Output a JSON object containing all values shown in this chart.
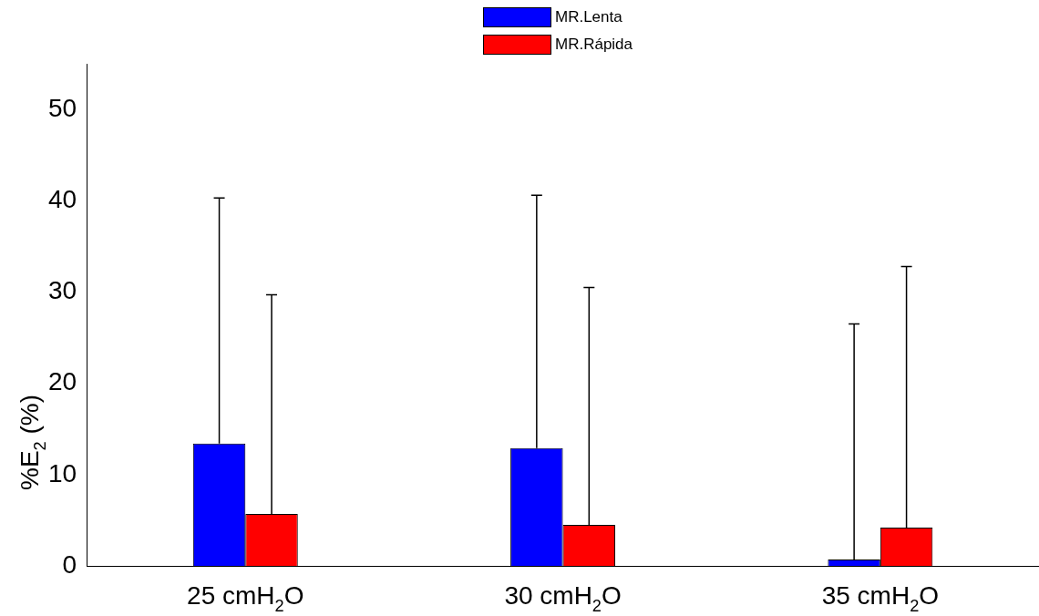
{
  "chart_data": {
    "type": "bar",
    "ylabel": "%E$_{2}$ (%)",
    "categories": [
      "25 cmH$_{2}$O",
      "30 cmH$_{2}$O",
      "35 cmH$_{2}$O"
    ],
    "series": [
      {
        "name": "MR.Lenta",
        "color": "#0000ff",
        "values": [
          13.4,
          12.9,
          0.7
        ],
        "errors": [
          [
            13.4,
            40.3
          ],
          [
            12.9,
            40.6
          ],
          [
            0.7,
            26.5
          ]
        ]
      },
      {
        "name": "MR.Rápida",
        "color": "#ff0000",
        "values": [
          5.7,
          4.5,
          4.2
        ],
        "errors": [
          [
            5.7,
            29.7
          ],
          [
            4.5,
            30.5
          ],
          [
            4.2,
            32.8
          ]
        ]
      }
    ],
    "ylim": [
      0,
      55
    ],
    "yticks": [
      0,
      10,
      20,
      30,
      40,
      50
    ],
    "grid": false,
    "legend": "top"
  }
}
